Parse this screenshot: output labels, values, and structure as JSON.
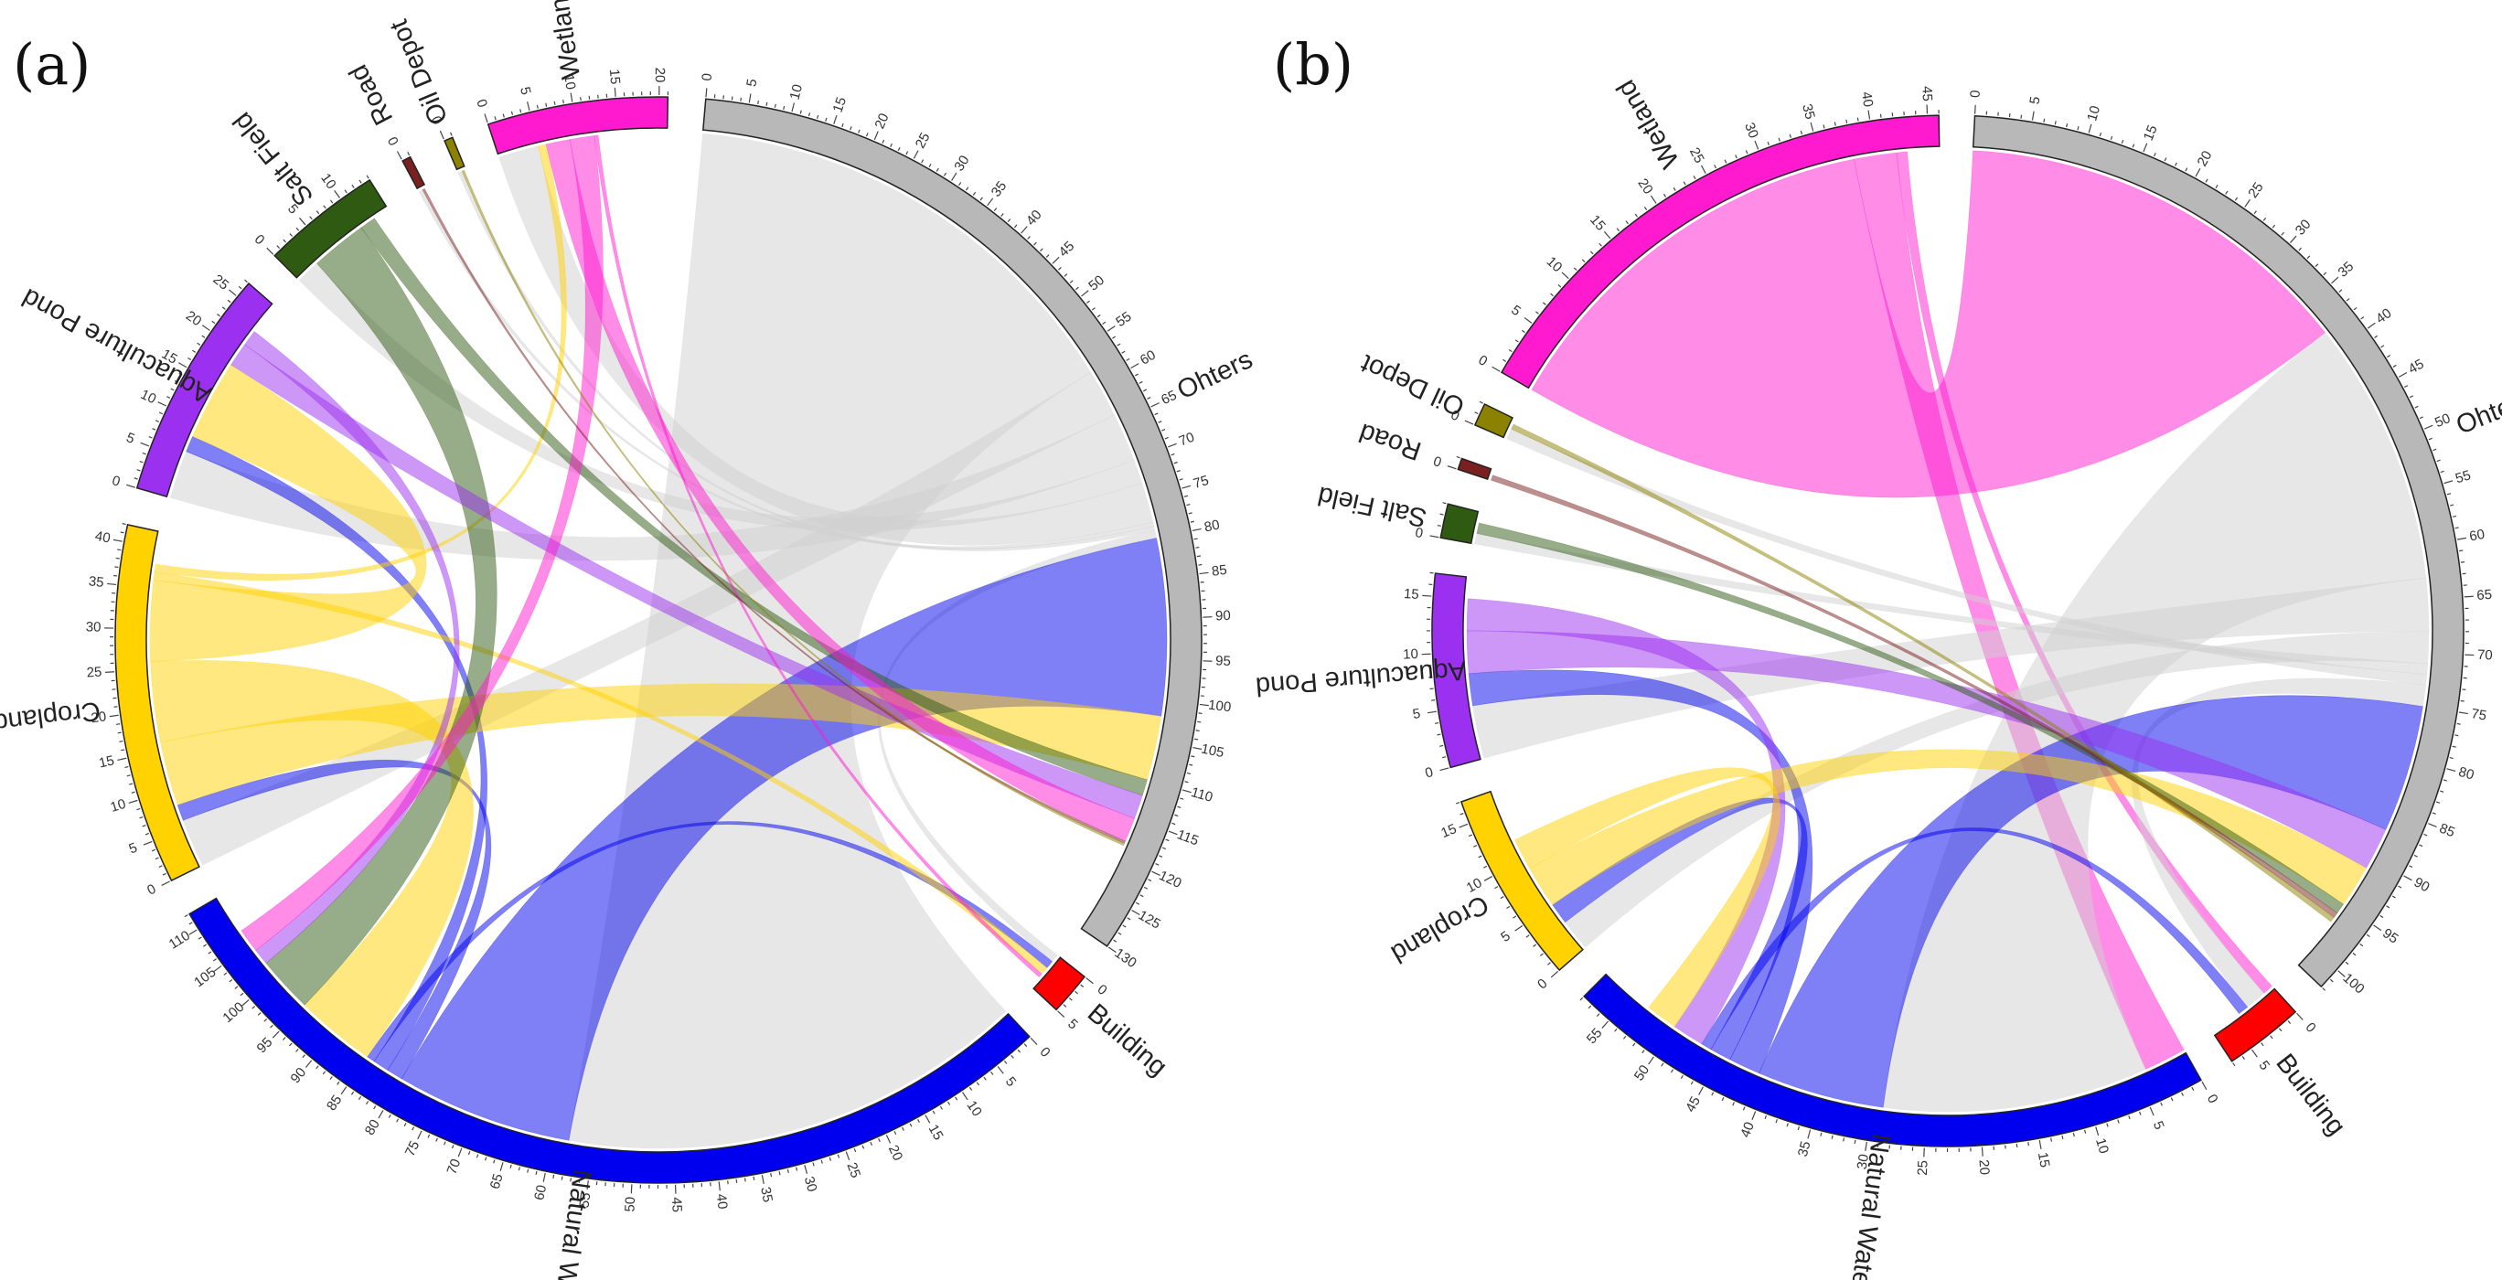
{
  "chart_data": [
    {
      "type": "chord",
      "panel_label": "(a)",
      "start_angle_deg": 5,
      "gap_deg": 4,
      "tick_step": 5,
      "sectors": [
        {
          "name": "Ohters",
          "color": "#b8b8b8",
          "max": 130
        },
        {
          "name": "Building",
          "color": "#ff0000",
          "max": 5
        },
        {
          "name": "Natural Water",
          "color": "#0000ee",
          "max": 112
        },
        {
          "name": "Cropland",
          "color": "#ffd200",
          "max": 42
        },
        {
          "name": "Aquaculture Pond",
          "color": "#9b30f0",
          "max": 27
        },
        {
          "name": "Salt Field",
          "color": "#2f5a12",
          "max": 14
        },
        {
          "name": "Road",
          "color": "#7a2020",
          "max": 1
        },
        {
          "name": "Oil Depot",
          "color": "#8b8200",
          "max": 1
        },
        {
          "name": "Wetland",
          "color": "#ff1ad0",
          "max": 21
        }
      ],
      "flows": [
        {
          "from": "Ohters",
          "to": "Natural Water",
          "value": 58
        },
        {
          "from": "Ohters",
          "to": "Cropland",
          "value": 6
        },
        {
          "from": "Ohters",
          "to": "Aquaculture Pond",
          "value": 6
        },
        {
          "from": "Ohters",
          "to": "Salt Field",
          "value": 3
        },
        {
          "from": "Ohters",
          "to": "Wetland",
          "value": 5
        },
        {
          "from": "Ohters",
          "to": "Road",
          "value": 0.5
        },
        {
          "from": "Ohters",
          "to": "Oil Depot",
          "value": 0.5
        },
        {
          "from": "Ohters",
          "to": "Building",
          "value": 1
        },
        {
          "from": "Natural Water",
          "to": "Ohters",
          "value": 22
        },
        {
          "from": "Natural Water",
          "to": "Cropland",
          "value": 2
        },
        {
          "from": "Natural Water",
          "to": "Aquaculture Pond",
          "value": 2
        },
        {
          "from": "Natural Water",
          "to": "Building",
          "value": 1
        },
        {
          "from": "Cropland",
          "to": "Ohters",
          "value": 8
        },
        {
          "from": "Cropland",
          "to": "Natural Water",
          "value": 10
        },
        {
          "from": "Cropland",
          "to": "Aquaculture Pond",
          "value": 10
        },
        {
          "from": "Cropland",
          "to": "Building",
          "value": 1
        },
        {
          "from": "Cropland",
          "to": "Wetland",
          "value": 1
        },
        {
          "from": "Salt Field",
          "to": "Natural Water",
          "value": 7
        },
        {
          "from": "Salt Field",
          "to": "Ohters",
          "value": 2
        },
        {
          "from": "Aquaculture Pond",
          "to": "Ohters",
          "value": 3
        },
        {
          "from": "Aquaculture Pond",
          "to": "Natural Water",
          "value": 2
        },
        {
          "from": "Wetland",
          "to": "Ohters",
          "value": 3
        },
        {
          "from": "Wetland",
          "to": "Natural Water",
          "value": 3
        },
        {
          "from": "Wetland",
          "to": "Building",
          "value": 0.5
        },
        {
          "from": "Road",
          "to": "Ohters",
          "value": 0.3
        },
        {
          "from": "Oil Depot",
          "to": "Ohters",
          "value": 0.3
        }
      ]
    },
    {
      "type": "chord",
      "panel_label": "(b)",
      "start_angle_deg": 3,
      "gap_deg": 4,
      "tick_step": 5,
      "sectors": [
        {
          "name": "Ohters",
          "color": "#b8b8b8",
          "max": 102
        },
        {
          "name": "Building",
          "color": "#ff0000",
          "max": 7
        },
        {
          "name": "Natural Water",
          "color": "#0000ee",
          "max": 58
        },
        {
          "name": "Cropland",
          "color": "#ffd200",
          "max": 17
        },
        {
          "name": "Aquaculture Pond",
          "color": "#9b30f0",
          "max": 17
        },
        {
          "name": "Salt Field",
          "color": "#2f5a12",
          "max": 3
        },
        {
          "name": "Road",
          "color": "#7a2020",
          "max": 1
        },
        {
          "name": "Oil Depot",
          "color": "#8b8200",
          "max": 2
        },
        {
          "name": "Wetland",
          "color": "#ff1ad0",
          "max": 46
        }
      ],
      "flows": [
        {
          "from": "Wetland",
          "to": "Ohters",
          "value": 38
        },
        {
          "from": "Wetland",
          "to": "Natural Water",
          "value": 4
        },
        {
          "from": "Wetland",
          "to": "Building",
          "value": 1
        },
        {
          "from": "Ohters",
          "to": "Natural Water",
          "value": 25
        },
        {
          "from": "Ohters",
          "to": "Aquaculture Pond",
          "value": 5
        },
        {
          "from": "Ohters",
          "to": "Cropland",
          "value": 3
        },
        {
          "from": "Ohters",
          "to": "Salt Field",
          "value": 1
        },
        {
          "from": "Ohters",
          "to": "Oil Depot",
          "value": 1
        },
        {
          "from": "Ohters",
          "to": "Building",
          "value": 2
        },
        {
          "from": "Natural Water",
          "to": "Ohters",
          "value": 12
        },
        {
          "from": "Natural Water",
          "to": "Aquaculture Pond",
          "value": 3
        },
        {
          "from": "Natural Water",
          "to": "Cropland",
          "value": 2
        },
        {
          "from": "Natural Water",
          "to": "Building",
          "value": 1
        },
        {
          "from": "Aquaculture Pond",
          "to": "Ohters",
          "value": 4
        },
        {
          "from": "Aquaculture Pond",
          "to": "Natural Water",
          "value": 3
        },
        {
          "from": "Cropland",
          "to": "Ohters",
          "value": 4
        },
        {
          "from": "Cropland",
          "to": "Natural Water",
          "value": 3
        },
        {
          "from": "Salt Field",
          "to": "Ohters",
          "value": 1
        },
        {
          "from": "Road",
          "to": "Ohters",
          "value": 0.5
        },
        {
          "from": "Oil Depot",
          "to": "Ohters",
          "value": 0.5
        }
      ]
    }
  ]
}
